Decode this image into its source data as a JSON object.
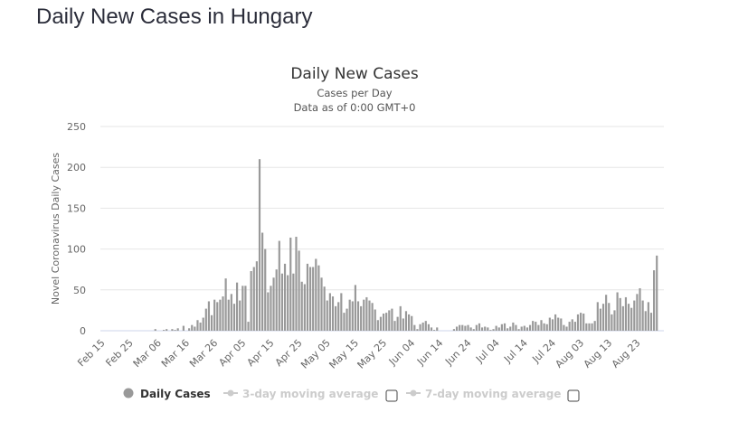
{
  "page": {
    "title": "Daily New Cases in Hungary"
  },
  "chart_data": {
    "type": "bar",
    "title": "Daily New Cases",
    "subtitle": [
      "Cases per Day",
      "Data as of 0:00 GMT+0"
    ],
    "xlabel": "",
    "ylabel": "Novel Coronavirus Daily Cases",
    "ylim": [
      0,
      250
    ],
    "yticks": [
      0,
      50,
      100,
      150,
      200,
      250
    ],
    "grid": true,
    "start_date": "Feb 15",
    "xtick_labels": [
      "Feb 15",
      "Feb 25",
      "Mar 06",
      "Mar 16",
      "Mar 26",
      "Apr 05",
      "Apr 15",
      "Apr 25",
      "May 05",
      "May 15",
      "May 25",
      "Jun 04",
      "Jun 14",
      "Jun 24",
      "Jul 04",
      "Jul 14",
      "Jul 24",
      "Aug 03",
      "Aug 13",
      "Aug 23"
    ],
    "xtick_every_days": 10,
    "bar_color": "#999999",
    "series": [
      {
        "name": "Daily Cases",
        "values": [
          0,
          0,
          0,
          0,
          0,
          0,
          0,
          0,
          0,
          0,
          0,
          0,
          0,
          0,
          0,
          0,
          0,
          0,
          0,
          2,
          0,
          0,
          1,
          2,
          0,
          2,
          1,
          3,
          0,
          6,
          0,
          3,
          7,
          5,
          13,
          10,
          16,
          27,
          36,
          19,
          38,
          35,
          38,
          42,
          64,
          38,
          45,
          33,
          59,
          37,
          55,
          55,
          11,
          73,
          78,
          85,
          210,
          120,
          100,
          47,
          55,
          65,
          75,
          110,
          70,
          82,
          68,
          114,
          70,
          115,
          98,
          60,
          57,
          82,
          78,
          78,
          88,
          80,
          65,
          54,
          37,
          46,
          42,
          30,
          35,
          46,
          22,
          27,
          38,
          36,
          56,
          36,
          30,
          38,
          41,
          37,
          34,
          26,
          13,
          17,
          21,
          22,
          25,
          27,
          12,
          17,
          30,
          15,
          24,
          20,
          18,
          7,
          2,
          8,
          10,
          12,
          8,
          4,
          1,
          4,
          0,
          0,
          0,
          0,
          0,
          2,
          5,
          7,
          7,
          6,
          7,
          4,
          2,
          7,
          9,
          4,
          5,
          4,
          1,
          2,
          6,
          4,
          8,
          9,
          3,
          5,
          10,
          7,
          2,
          5,
          6,
          4,
          7,
          12,
          11,
          7,
          13,
          9,
          8,
          16,
          14,
          20,
          16,
          15,
          7,
          5,
          11,
          14,
          11,
          20,
          22,
          21,
          9,
          9,
          9,
          12,
          35,
          27,
          33,
          44,
          34,
          20,
          25,
          47,
          40,
          30,
          41,
          33,
          28,
          37,
          45,
          52,
          37,
          24,
          35,
          22,
          74,
          92,
          0,
          0
        ]
      },
      {
        "name": "3-day moving average",
        "visible": false
      },
      {
        "name": "7-day moving average",
        "visible": false
      }
    ],
    "legend": {
      "position": "bottom",
      "items": [
        {
          "label": "Daily Cases",
          "active": true,
          "checkbox": false
        },
        {
          "label": "3-day moving average",
          "active": false,
          "checkbox": true,
          "checked": false
        },
        {
          "label": "7-day moving average",
          "active": false,
          "checkbox": true,
          "checked": false
        }
      ]
    }
  }
}
